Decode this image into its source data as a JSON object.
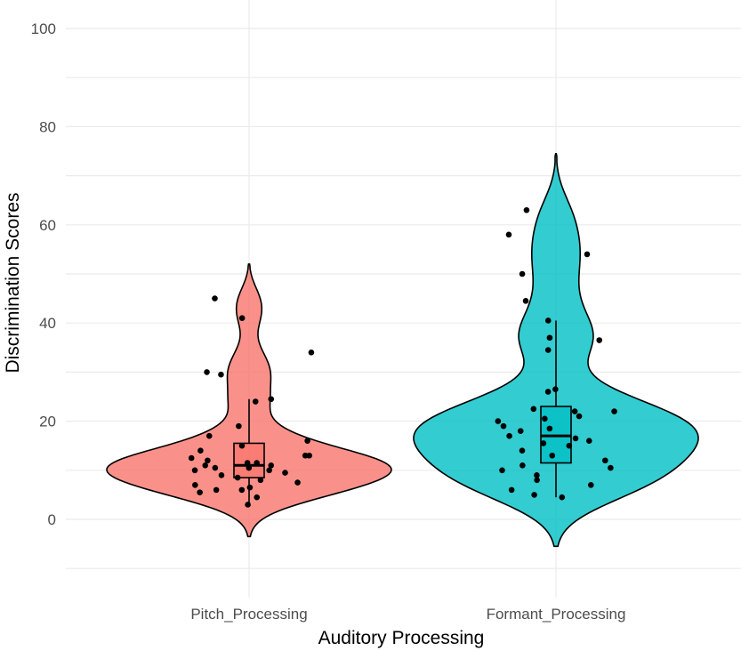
{
  "chart_data": {
    "type": "violin",
    "title": "",
    "xlabel": "Auditory Processing",
    "ylabel": "Discrimination Scores",
    "ylim": [
      -17,
      103
    ],
    "yticks": [
      0,
      20,
      40,
      60,
      80,
      100
    ],
    "grid": true,
    "legend": "none",
    "categories": [
      "Pitch_Processing",
      "Formant_Processing"
    ],
    "series": [
      {
        "category": "Pitch_Processing",
        "color": "#F8766D",
        "violin_range": [
          -3.5,
          52
        ],
        "violin_max_width_at": 11,
        "box": {
          "min": 3,
          "q1": 8.5,
          "median": 11,
          "q3": 15.5,
          "max": 24.5
        },
        "points": [
          3,
          4.5,
          5.5,
          6,
          6,
          6.5,
          7,
          7.5,
          8,
          8.5,
          9,
          9.5,
          10,
          10,
          10.5,
          10.5,
          11,
          11,
          11.5,
          11.5,
          12,
          12.5,
          13,
          13,
          14,
          15,
          16,
          17,
          19,
          24,
          24.5,
          29.5,
          30,
          34,
          41,
          45
        ]
      },
      {
        "category": "Formant_Processing",
        "color": "#00BFC4",
        "violin_range": [
          -5.5,
          74.5
        ],
        "violin_max_width_at": 15.5,
        "box": {
          "min": 4.5,
          "q1": 11.5,
          "median": 17,
          "q3": 23,
          "max": 40.5
        },
        "points": [
          4.5,
          5,
          6,
          7,
          8,
          9,
          10,
          10.5,
          11,
          12,
          13,
          14,
          15,
          15.5,
          16,
          16.5,
          17,
          18,
          18.5,
          19,
          20,
          20.5,
          21,
          22,
          22,
          22.5,
          26,
          26.5,
          34.5,
          36.5,
          37,
          40.5,
          44.5,
          50,
          54,
          58,
          63
        ]
      }
    ]
  }
}
